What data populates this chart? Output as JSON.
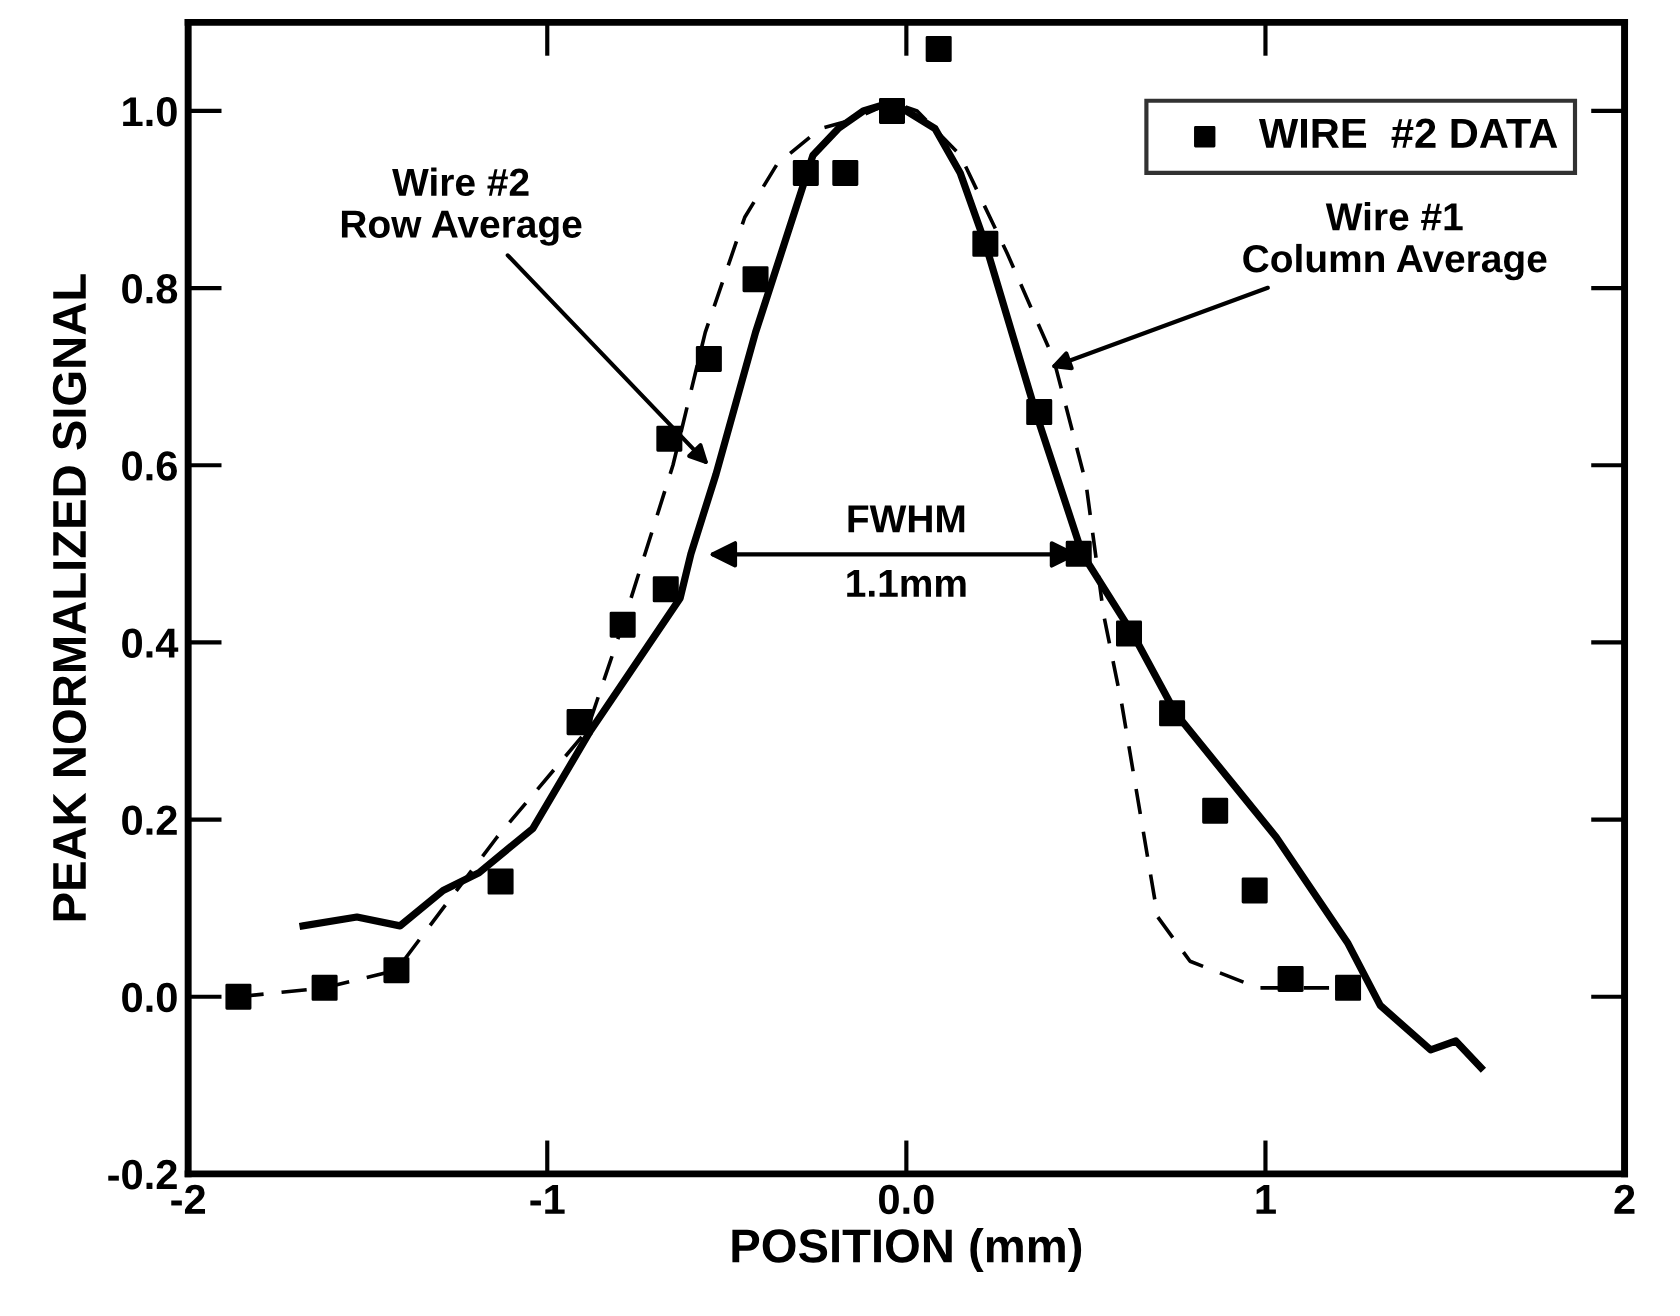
{
  "chart_data": {
    "type": "line",
    "xlabel": "POSITION (mm)",
    "ylabel": "PEAK NORMALIZED SIGNAL",
    "xlim": [
      -2,
      2
    ],
    "ylim": [
      -0.2,
      1.1
    ],
    "xticks": [
      -2,
      -1,
      {
        "value": 0,
        "label": "0.0"
      },
      1,
      2
    ],
    "yticks": [
      {
        "value": -0.2,
        "label": "-0.2"
      },
      {
        "value": 0,
        "label": "0.0"
      },
      {
        "value": 0.2,
        "label": "0.2"
      },
      {
        "value": 0.4,
        "label": "0.4"
      },
      {
        "value": 0.6,
        "label": "0.6"
      },
      {
        "value": 0.8,
        "label": "0.8"
      },
      {
        "value": 1,
        "label": "1.0"
      }
    ],
    "grid": false,
    "legend": "top right",
    "series": [
      {
        "name": "WIRE  #2 DATA",
        "type": "scatter",
        "marker": "square",
        "color": "#000000",
        "x": [
          -1.86,
          -1.62,
          -1.42,
          -1.13,
          -0.91,
          -0.79,
          -0.67,
          -0.66,
          -0.55,
          -0.42,
          -0.28,
          -0.17,
          -0.04,
          0.09,
          0.22,
          0.37,
          0.48,
          0.62,
          0.74,
          0.86,
          0.97,
          1.07,
          1.23
        ],
        "values": [
          0.0,
          0.01,
          0.03,
          0.13,
          0.31,
          0.42,
          0.46,
          0.63,
          0.72,
          0.81,
          0.93,
          0.93,
          1.0,
          1.07,
          0.85,
          0.66,
          0.5,
          0.41,
          0.32,
          0.21,
          0.12,
          0.02,
          0.01
        ]
      },
      {
        "line_style": "solid",
        "color": "#000000",
        "x": [
          -1.68,
          -1.53,
          -1.41,
          -1.29,
          -1.19,
          -1.04,
          -0.88,
          -0.63,
          -0.6,
          -0.53,
          -0.42,
          -0.26,
          -0.19,
          -0.12,
          -0.04,
          0.08,
          0.15,
          0.22,
          0.36,
          0.49,
          0.63,
          0.75,
          0.91,
          1.03,
          1.23,
          1.32,
          1.46,
          1.53,
          1.6
        ],
        "values": [
          0.08,
          0.09,
          0.08,
          0.12,
          0.14,
          0.19,
          0.3,
          0.45,
          0.5,
          0.59,
          0.75,
          0.95,
          0.98,
          1.0,
          1.01,
          0.98,
          0.93,
          0.85,
          0.66,
          0.5,
          0.41,
          0.32,
          0.24,
          0.18,
          0.06,
          -0.01,
          -0.06,
          -0.05,
          -0.08
        ]
      },
      {
        "line_style": "dashed",
        "color": "#000000",
        "x": [
          -1.86,
          -1.62,
          -1.42,
          -1.29,
          -1.14,
          -0.89,
          -0.79,
          -0.65,
          -0.56,
          -0.45,
          -0.36,
          -0.24,
          -0.15,
          -0.04,
          0.03,
          0.15,
          0.28,
          0.41,
          0.5,
          0.55,
          0.6,
          0.65,
          0.7,
          0.79,
          0.98,
          1.24
        ],
        "values": [
          0.0,
          0.01,
          0.03,
          0.1,
          0.18,
          0.3,
          0.42,
          0.6,
          0.75,
          0.88,
          0.94,
          0.98,
          0.99,
          1.01,
          1.0,
          0.95,
          0.84,
          0.72,
          0.58,
          0.43,
          0.33,
          0.21,
          0.09,
          0.04,
          0.01,
          0.01
        ]
      }
    ],
    "annotations": [
      {
        "text": "Wire #2\nRow Average",
        "x": -0.55,
        "y": 0.6
      },
      {
        "text": "Wire #1\nColumn Average",
        "x": 0.4,
        "y": 0.71
      },
      "FWHM\n1.1mm"
    ]
  }
}
